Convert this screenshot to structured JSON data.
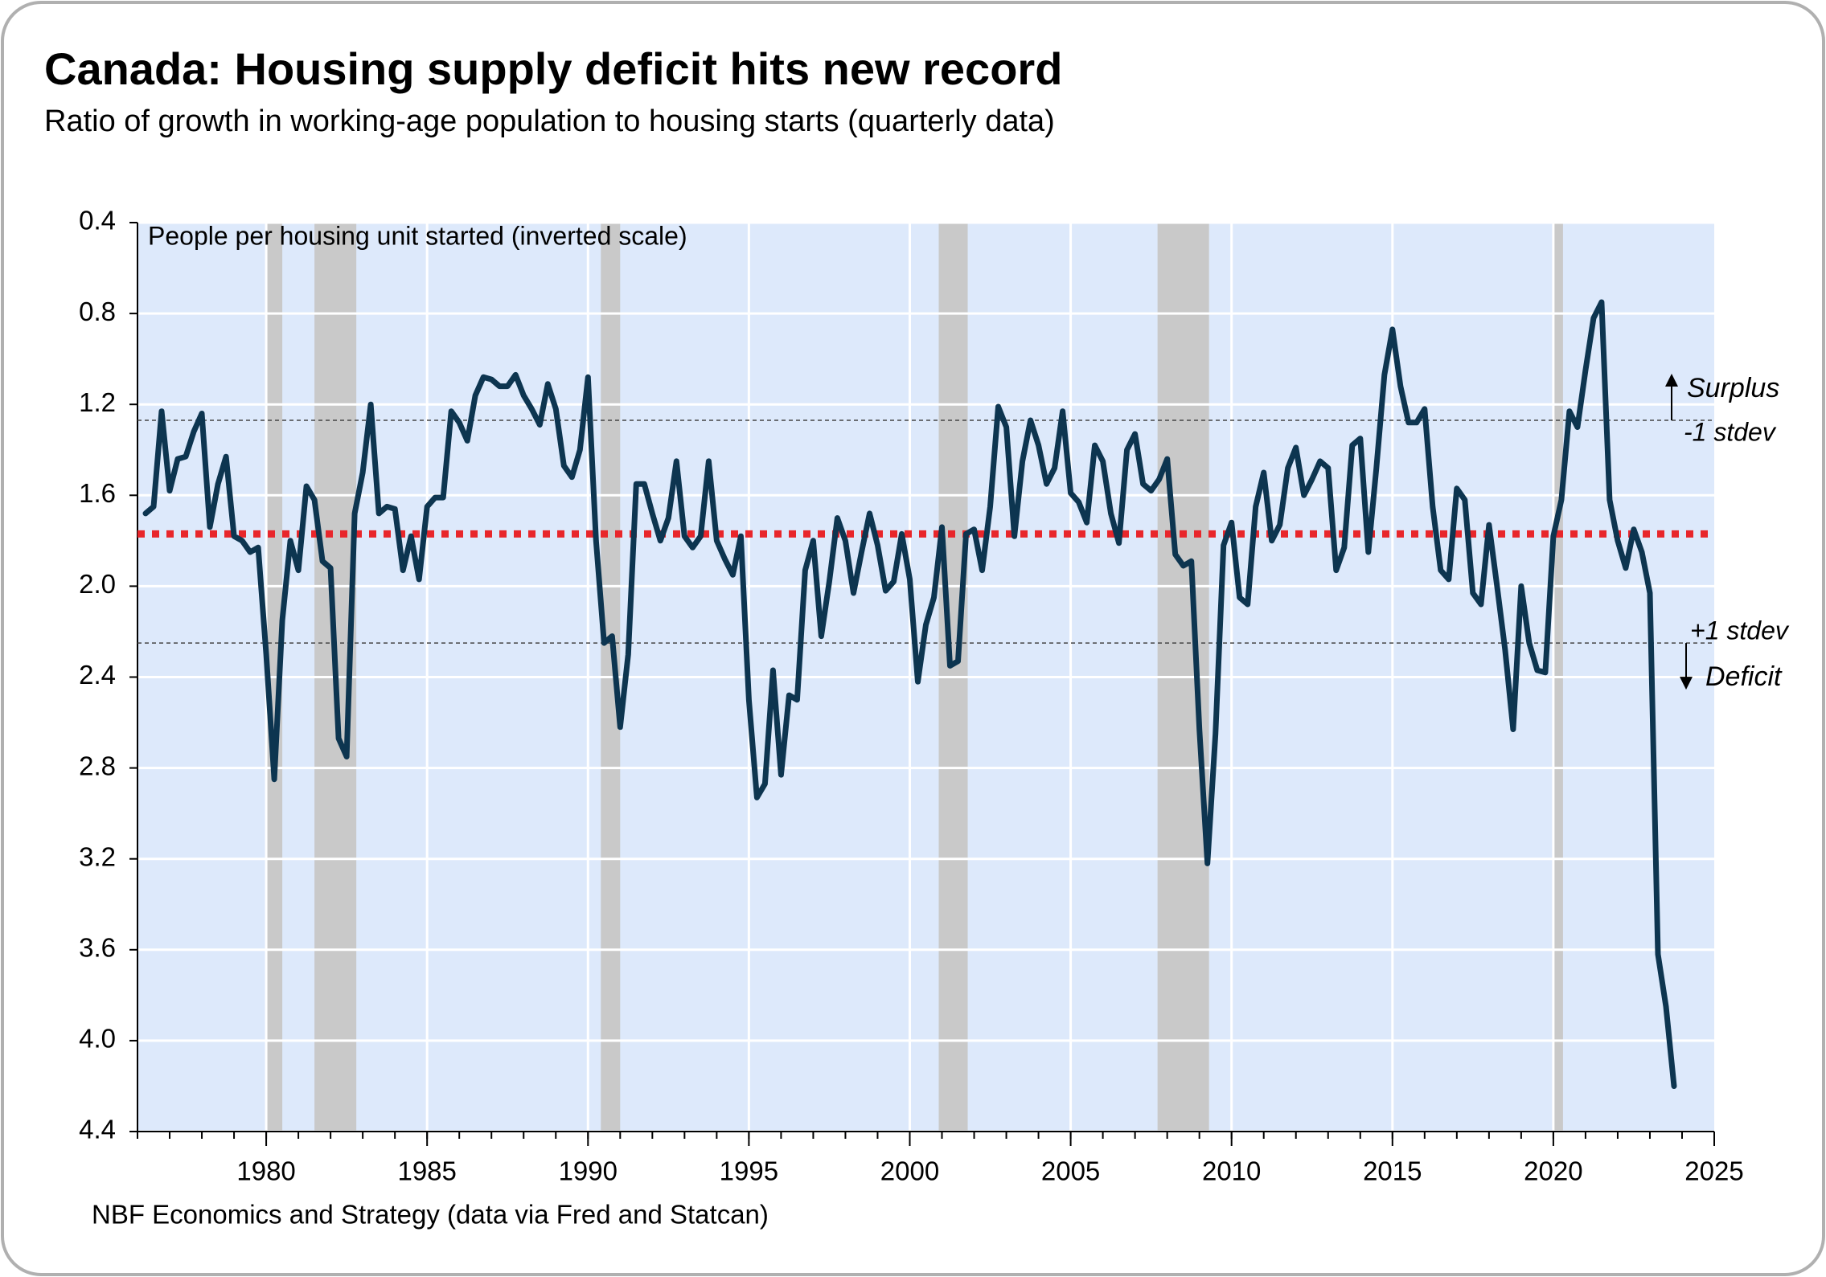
{
  "chart_data": {
    "type": "line",
    "title": "Canada: Housing supply deficit hits new record",
    "subtitle": "Ratio of growth in working-age population to housing starts (quarterly data)",
    "y_axis_label": "People per housing unit started (inverted scale)",
    "source": "NBF Economics and Strategy (data via Fred and Statcan)",
    "surplus_label": "Surplus",
    "deficit_label": "Deficit",
    "color": "#0d3550",
    "background": "#dde9fb",
    "shade_color": "#c9c9c9",
    "grid": true,
    "y_inverted": true,
    "xlim": [
      1976,
      2025
    ],
    "xticks": [
      1980,
      1985,
      1990,
      1995,
      2000,
      2005,
      2010,
      2015,
      2020,
      2025
    ],
    "ylim": [
      0.4,
      4.4
    ],
    "yticks": [
      0.4,
      0.8,
      1.2,
      1.6,
      {
        "value": 2,
        "label": "2.0"
      },
      2.4,
      2.8,
      3.2,
      3.6,
      {
        "value": 4,
        "label": "4.0"
      },
      4.4
    ],
    "shaded_periods": [
      {
        "start": 1980.0,
        "end": 1980.5
      },
      {
        "start": 1981.5,
        "end": 1982.8
      },
      {
        "start": 1990.4,
        "end": 1991.0
      },
      {
        "start": 2000.9,
        "end": 2001.8
      },
      {
        "start": 2007.7,
        "end": 2009.3
      },
      {
        "start": 2020.0,
        "end": 2020.3
      }
    ],
    "reference_lines": [
      {
        "value": 1.77,
        "color": "#e8262b",
        "style": "dotted"
      },
      {
        "value": 1.27,
        "label": "-1 stdev",
        "color": "#444444",
        "style": "dashed"
      },
      {
        "value": 2.25,
        "label": "+1 stdev",
        "color": "#444444",
        "style": "dashed"
      }
    ],
    "x": [
      1976.25,
      1976.5,
      1976.75,
      1977,
      1977.25,
      1977.5,
      1977.75,
      1978,
      1978.25,
      1978.5,
      1978.75,
      1979,
      1979.25,
      1979.5,
      1979.75,
      1980,
      1980.25,
      1980.5,
      1980.75,
      1981,
      1981.25,
      1981.5,
      1981.75,
      1982,
      1982.25,
      1982.5,
      1982.75,
      1983,
      1983.25,
      1983.5,
      1983.75,
      1984,
      1984.25,
      1984.5,
      1984.75,
      1985,
      1985.25,
      1985.5,
      1985.75,
      1986,
      1986.25,
      1986.5,
      1986.75,
      1987,
      1987.25,
      1987.5,
      1987.75,
      1988,
      1988.25,
      1988.5,
      1988.75,
      1989,
      1989.25,
      1989.5,
      1989.75,
      1990,
      1990.25,
      1990.5,
      1990.75,
      1991,
      1991.25,
      1991.5,
      1991.75,
      1992,
      1992.25,
      1992.5,
      1992.75,
      1993,
      1993.25,
      1993.5,
      1993.75,
      1994,
      1994.25,
      1994.5,
      1994.75,
      1995,
      1995.25,
      1995.5,
      1995.75,
      1996,
      1996.25,
      1996.5,
      1996.75,
      1997,
      1997.25,
      1997.5,
      1997.75,
      1998,
      1998.25,
      1998.5,
      1998.75,
      1999,
      1999.25,
      1999.5,
      1999.75,
      2000,
      2000.25,
      2000.5,
      2000.75,
      2001,
      2001.25,
      2001.5,
      2001.75,
      2002,
      2002.25,
      2002.5,
      2002.75,
      2003,
      2003.25,
      2003.5,
      2003.75,
      2004,
      2004.25,
      2004.5,
      2004.75,
      2005,
      2005.25,
      2005.5,
      2005.75,
      2006,
      2006.25,
      2006.5,
      2006.75,
      2007,
      2007.25,
      2007.5,
      2007.75,
      2008,
      2008.25,
      2008.5,
      2008.75,
      2009,
      2009.25,
      2009.5,
      2009.75,
      2010,
      2010.25,
      2010.5,
      2010.75,
      2011,
      2011.25,
      2011.5,
      2011.75,
      2012,
      2012.25,
      2012.5,
      2012.75,
      2013,
      2013.25,
      2013.5,
      2013.75,
      2014,
      2014.25,
      2014.5,
      2014.75,
      2015,
      2015.25,
      2015.5,
      2015.75,
      2016,
      2016.25,
      2016.5,
      2016.75,
      2017,
      2017.25,
      2017.5,
      2017.75,
      2018,
      2018.25,
      2018.5,
      2018.75,
      2019,
      2019.25,
      2019.5,
      2019.75,
      2020,
      2020.25,
      2020.5,
      2020.75,
      2021,
      2021.25,
      2021.5,
      2021.75,
      2022,
      2022.25,
      2022.5,
      2022.75,
      2023,
      2023.25,
      2023.5,
      2023.75
    ],
    "values": [
      1.68,
      1.65,
      1.23,
      1.58,
      1.44,
      1.43,
      1.32,
      1.24,
      1.74,
      1.55,
      1.43,
      1.78,
      1.8,
      1.85,
      1.83,
      2.3,
      2.85,
      2.15,
      1.8,
      1.93,
      1.56,
      1.62,
      1.89,
      1.92,
      2.67,
      2.75,
      1.68,
      1.5,
      1.2,
      1.68,
      1.65,
      1.66,
      1.93,
      1.78,
      1.97,
      1.65,
      1.61,
      1.61,
      1.23,
      1.28,
      1.36,
      1.16,
      1.08,
      1.09,
      1.12,
      1.12,
      1.07,
      1.16,
      1.22,
      1.29,
      1.11,
      1.22,
      1.47,
      1.52,
      1.4,
      1.08,
      1.8,
      2.25,
      2.22,
      2.62,
      2.3,
      1.55,
      1.55,
      1.68,
      1.8,
      1.7,
      1.45,
      1.78,
      1.83,
      1.78,
      1.45,
      1.8,
      1.88,
      1.95,
      1.78,
      2.5,
      2.93,
      2.87,
      2.37,
      2.83,
      2.48,
      2.5,
      1.93,
      1.8,
      2.22,
      1.98,
      1.7,
      1.8,
      2.03,
      1.85,
      1.68,
      1.82,
      2.02,
      1.98,
      1.77,
      1.97,
      2.42,
      2.17,
      2.05,
      1.74,
      2.35,
      2.33,
      1.77,
      1.75,
      1.93,
      1.65,
      1.21,
      1.3,
      1.78,
      1.45,
      1.27,
      1.38,
      1.55,
      1.48,
      1.23,
      1.59,
      1.63,
      1.72,
      1.38,
      1.45,
      1.68,
      1.81,
      1.4,
      1.33,
      1.55,
      1.58,
      1.53,
      1.44,
      1.86,
      1.91,
      1.89,
      2.63,
      3.22,
      2.65,
      1.82,
      1.72,
      2.05,
      2.08,
      1.65,
      1.5,
      1.8,
      1.73,
      1.48,
      1.39,
      1.6,
      1.53,
      1.45,
      1.48,
      1.93,
      1.83,
      1.38,
      1.35,
      1.85,
      1.48,
      1.07,
      0.87,
      1.12,
      1.28,
      1.28,
      1.22,
      1.65,
      1.93,
      1.97,
      1.57,
      1.62,
      2.03,
      2.08,
      1.73,
      2.0,
      2.28,
      2.63,
      2.0,
      2.25,
      2.37,
      2.38,
      1.78,
      1.62,
      1.23,
      1.3,
      1.05,
      0.82,
      0.75,
      1.62,
      1.8,
      1.92,
      1.75,
      1.85,
      2.03,
      3.62,
      3.85,
      4.2
    ]
  }
}
